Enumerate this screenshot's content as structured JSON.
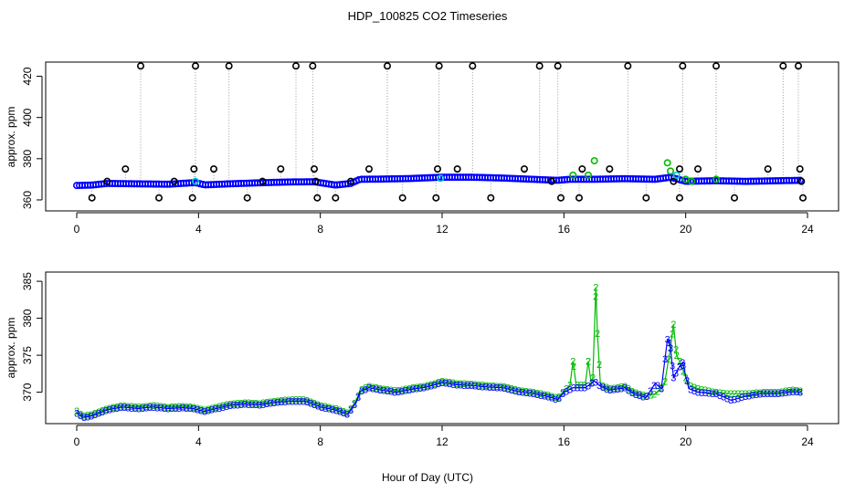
{
  "title": "HDP_100825  CO2 Timeseries",
  "xlabel": "Hour of Day (UTC)",
  "colors": {
    "black": "#000000",
    "blue": "#0000ff",
    "green": "#00bb00",
    "cyan": "#00cccc",
    "gray": "#999999"
  },
  "chart_data": [
    {
      "type": "scatter",
      "panel": "top",
      "ylabel": "approx. ppm",
      "xlim": [
        0,
        24
      ],
      "ylim": [
        356,
        426
      ],
      "x_ticks": [
        0,
        4,
        8,
        12,
        16,
        20,
        24
      ],
      "x_tick_labels": [
        "0",
        "4",
        "8",
        "12",
        "16",
        "20",
        "24"
      ],
      "y_ticks": [
        360,
        380,
        400,
        420
      ],
      "y_tick_labels": [
        "360",
        "380",
        "400",
        "420"
      ],
      "baseline_points": [
        [
          0.0,
          367.0
        ],
        [
          0.5,
          367.2
        ],
        [
          1.0,
          368.0
        ],
        [
          2.0,
          367.8
        ],
        [
          3.0,
          367.6
        ],
        [
          3.9,
          368.4
        ],
        [
          4.2,
          367.3
        ],
        [
          5.0,
          367.8
        ],
        [
          6.0,
          368.3
        ],
        [
          7.0,
          368.7
        ],
        [
          7.8,
          368.8
        ],
        [
          8.5,
          367.2
        ],
        [
          9.0,
          368.0
        ],
        [
          9.3,
          370.0
        ],
        [
          10.0,
          370.1
        ],
        [
          11.0,
          370.4
        ],
        [
          12.0,
          371.0
        ],
        [
          13.0,
          371.0
        ],
        [
          14.0,
          370.6
        ],
        [
          15.0,
          370.0
        ],
        [
          15.8,
          369.5
        ],
        [
          16.2,
          370.0
        ],
        [
          17.0,
          370.0
        ],
        [
          18.0,
          370.3
        ],
        [
          19.0,
          370.0
        ],
        [
          19.5,
          371.0
        ],
        [
          20.0,
          369.0
        ],
        [
          21.0,
          369.3
        ],
        [
          22.0,
          369.0
        ],
        [
          23.0,
          369.3
        ],
        [
          23.8,
          369.5
        ]
      ],
      "outlier_points": [
        [
          0.5,
          361
        ],
        [
          1.0,
          369
        ],
        [
          1.6,
          375
        ],
        [
          2.1,
          425
        ],
        [
          2.7,
          361
        ],
        [
          3.2,
          369
        ],
        [
          3.8,
          361
        ],
        [
          3.85,
          375
        ],
        [
          3.9,
          425
        ],
        [
          4.5,
          375
        ],
        [
          5.0,
          425
        ],
        [
          5.6,
          361
        ],
        [
          6.1,
          369
        ],
        [
          6.7,
          375
        ],
        [
          7.2,
          425
        ],
        [
          7.75,
          425
        ],
        [
          7.8,
          375
        ],
        [
          7.85,
          369
        ],
        [
          7.9,
          361
        ],
        [
          8.5,
          361
        ],
        [
          9.0,
          369
        ],
        [
          9.6,
          375
        ],
        [
          10.2,
          425
        ],
        [
          10.7,
          361
        ],
        [
          11.8,
          361
        ],
        [
          11.85,
          375
        ],
        [
          11.9,
          425
        ],
        [
          12.5,
          375
        ],
        [
          13.0,
          425
        ],
        [
          13.6,
          361
        ],
        [
          14.7,
          375
        ],
        [
          15.2,
          425
        ],
        [
          15.6,
          369
        ],
        [
          15.8,
          425
        ],
        [
          15.9,
          361
        ],
        [
          16.5,
          361
        ],
        [
          16.6,
          375
        ],
        [
          17.5,
          375
        ],
        [
          18.1,
          425
        ],
        [
          18.7,
          361
        ],
        [
          19.6,
          369
        ],
        [
          19.8,
          375
        ],
        [
          19.9,
          425
        ],
        [
          19.8,
          361
        ],
        [
          20.4,
          375
        ],
        [
          21.0,
          425
        ],
        [
          21.6,
          361
        ],
        [
          22.7,
          375
        ],
        [
          23.2,
          425
        ],
        [
          23.7,
          425
        ],
        [
          23.75,
          375
        ],
        [
          23.8,
          369
        ],
        [
          23.85,
          361
        ]
      ],
      "green_points": [
        [
          16.3,
          372
        ],
        [
          16.8,
          372
        ],
        [
          17.0,
          379
        ],
        [
          19.4,
          378
        ],
        [
          19.5,
          374
        ],
        [
          20.0,
          370
        ],
        [
          20.2,
          369
        ],
        [
          21.0,
          370
        ]
      ],
      "cyan_points": [
        [
          3.9,
          369
        ],
        [
          11.95,
          370.5
        ],
        [
          19.7,
          372
        ]
      ]
    },
    {
      "type": "line",
      "panel": "bottom",
      "ylabel": "approx. ppm",
      "xlim": [
        0,
        24
      ],
      "ylim": [
        366,
        386
      ],
      "x_ticks": [
        0,
        4,
        8,
        12,
        16,
        20,
        24
      ],
      "x_tick_labels": [
        "0",
        "4",
        "8",
        "12",
        "16",
        "20",
        "24"
      ],
      "y_ticks": [
        370,
        375,
        380,
        385
      ],
      "y_tick_labels": [
        "370",
        "375",
        "380",
        "385"
      ],
      "marker_labels": [
        "2",
        "3"
      ],
      "series": [
        {
          "name": "2",
          "color": "green",
          "points": [
            [
              0.0,
              367.5
            ],
            [
              0.2,
              366.8
            ],
            [
              0.5,
              367.0
            ],
            [
              1.0,
              367.8
            ],
            [
              1.5,
              368.2
            ],
            [
              2.0,
              368.0
            ],
            [
              2.5,
              368.2
            ],
            [
              3.0,
              368.0
            ],
            [
              3.5,
              368.1
            ],
            [
              3.8,
              368.0
            ],
            [
              4.2,
              367.6
            ],
            [
              4.6,
              368.0
            ],
            [
              5.0,
              368.4
            ],
            [
              5.5,
              368.6
            ],
            [
              6.0,
              368.5
            ],
            [
              6.5,
              368.8
            ],
            [
              7.0,
              369.0
            ],
            [
              7.5,
              369.0
            ],
            [
              7.7,
              368.7
            ],
            [
              8.0,
              368.2
            ],
            [
              8.5,
              367.8
            ],
            [
              8.9,
              367.2
            ],
            [
              9.2,
              369.0
            ],
            [
              9.3,
              370.3
            ],
            [
              9.6,
              370.8
            ],
            [
              10.0,
              370.5
            ],
            [
              10.5,
              370.2
            ],
            [
              11.0,
              370.6
            ],
            [
              11.5,
              370.9
            ],
            [
              12.0,
              371.5
            ],
            [
              12.5,
              371.2
            ],
            [
              13.0,
              371.1
            ],
            [
              13.5,
              370.9
            ],
            [
              14.0,
              370.8
            ],
            [
              14.5,
              370.3
            ],
            [
              15.0,
              370.0
            ],
            [
              15.5,
              369.6
            ],
            [
              15.8,
              369.2
            ],
            [
              16.0,
              370.2
            ],
            [
              16.2,
              371.0
            ],
            [
              16.3,
              374.2
            ],
            [
              16.4,
              371.0
            ],
            [
              16.7,
              371.0
            ],
            [
              16.8,
              374.2
            ],
            [
              16.9,
              371.0
            ],
            [
              16.95,
              372.0
            ],
            [
              17.05,
              384.2
            ],
            [
              17.1,
              378.0
            ],
            [
              17.2,
              371.0
            ],
            [
              17.5,
              370.5
            ],
            [
              18.0,
              370.8
            ],
            [
              18.3,
              370.0
            ],
            [
              18.7,
              369.5
            ],
            [
              19.0,
              369.8
            ],
            [
              19.3,
              371.0
            ],
            [
              19.5,
              376.0
            ],
            [
              19.6,
              379.2
            ],
            [
              19.7,
              375.0
            ],
            [
              19.8,
              374.2
            ],
            [
              20.0,
              372.0
            ],
            [
              20.1,
              371.0
            ],
            [
              20.4,
              370.5
            ],
            [
              21.0,
              370.0
            ],
            [
              21.5,
              369.8
            ],
            [
              22.0,
              369.8
            ],
            [
              22.5,
              370.0
            ],
            [
              23.0,
              370.0
            ],
            [
              23.5,
              370.3
            ],
            [
              23.8,
              370.2
            ]
          ]
        },
        {
          "name": "3",
          "color": "blue",
          "points": [
            [
              0.0,
              367.2
            ],
            [
              0.2,
              366.6
            ],
            [
              0.5,
              366.8
            ],
            [
              1.0,
              367.6
            ],
            [
              1.5,
              368.0
            ],
            [
              2.0,
              367.8
            ],
            [
              2.5,
              368.0
            ],
            [
              3.0,
              367.8
            ],
            [
              3.5,
              367.9
            ],
            [
              3.8,
              367.8
            ],
            [
              4.2,
              367.4
            ],
            [
              4.6,
              367.8
            ],
            [
              5.0,
              368.2
            ],
            [
              5.5,
              368.4
            ],
            [
              6.0,
              368.3
            ],
            [
              6.5,
              368.6
            ],
            [
              7.0,
              368.8
            ],
            [
              7.5,
              368.8
            ],
            [
              7.7,
              368.5
            ],
            [
              8.0,
              368.0
            ],
            [
              8.5,
              367.6
            ],
            [
              8.9,
              367.0
            ],
            [
              9.2,
              368.8
            ],
            [
              9.3,
              370.1
            ],
            [
              9.6,
              370.6
            ],
            [
              10.0,
              370.3
            ],
            [
              10.5,
              370.0
            ],
            [
              11.0,
              370.4
            ],
            [
              11.5,
              370.7
            ],
            [
              12.0,
              371.3
            ],
            [
              12.5,
              371.0
            ],
            [
              13.0,
              370.9
            ],
            [
              13.5,
              370.7
            ],
            [
              14.0,
              370.6
            ],
            [
              14.5,
              370.1
            ],
            [
              15.0,
              369.8
            ],
            [
              15.5,
              369.4
            ],
            [
              15.8,
              369.0
            ],
            [
              16.0,
              370.0
            ],
            [
              16.3,
              370.6
            ],
            [
              16.7,
              370.6
            ],
            [
              17.0,
              371.5
            ],
            [
              17.2,
              370.8
            ],
            [
              17.5,
              370.3
            ],
            [
              18.0,
              370.6
            ],
            [
              18.3,
              369.8
            ],
            [
              18.7,
              369.3
            ],
            [
              19.0,
              371.2
            ],
            [
              19.2,
              370.5
            ],
            [
              19.4,
              377.2
            ],
            [
              19.5,
              376.0
            ],
            [
              19.6,
              372.0
            ],
            [
              19.8,
              373.5
            ],
            [
              19.9,
              374.0
            ],
            [
              20.1,
              370.5
            ],
            [
              20.4,
              370.0
            ],
            [
              21.0,
              369.8
            ],
            [
              21.5,
              368.9
            ],
            [
              22.0,
              369.5
            ],
            [
              22.5,
              369.8
            ],
            [
              23.0,
              369.8
            ],
            [
              23.5,
              370.1
            ],
            [
              23.8,
              370.0
            ]
          ]
        }
      ]
    }
  ]
}
